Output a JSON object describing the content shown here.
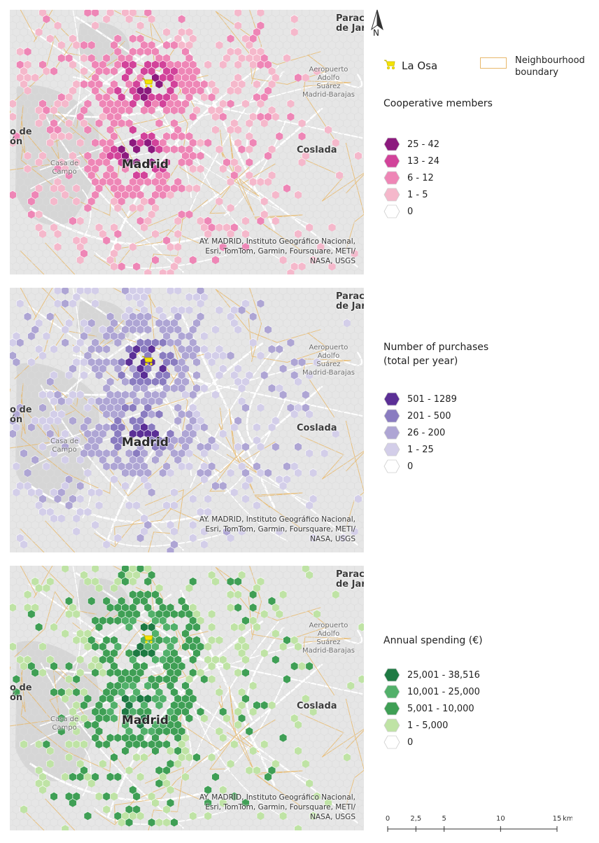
{
  "colors": {
    "boundary": "#e8b86b",
    "map_bg": "#e6e6e6",
    "park": "#d6d6d6",
    "road": "#ffffff",
    "marker": "#f5e400"
  },
  "north_label": "N",
  "general_legend": {
    "store_label": "La Osa",
    "store_icon": "shopping-cart-icon",
    "boundary_label_line1": "Neighbourhood",
    "boundary_label_line2": "boundary"
  },
  "map_labels": {
    "madrid": "Madrid",
    "coslada": "Coslada",
    "paracuellos_l1": "Paracuel",
    "paracuellos_l2": "de Jara",
    "airport_l1": "Aeropuerto",
    "airport_l2": "Adolfo",
    "airport_l3": "Suárez",
    "airport_l4": "Madrid-Barajas",
    "casa_l1": "Casa de",
    "casa_l2": "Campo",
    "pozuelo_l1": "o de",
    "pozuelo_l2": "ón"
  },
  "attribution": {
    "line1": "AY. MADRID, Instituto Geográfico Nacional,",
    "line2": "Esri, TomTom, Garmin, Foursquare, METI/",
    "line3": "NASA, USGS"
  },
  "panels": [
    {
      "legend_title_line1": "Cooperative members",
      "legend_title_line2": "",
      "classes": [
        {
          "label": "25 - 42",
          "color": "#8c1a7e"
        },
        {
          "label": "13 - 24",
          "color": "#d2439a"
        },
        {
          "label": "6 - 12",
          "color": "#ee86b6"
        },
        {
          "label": "1 - 5",
          "color": "#f5b8cb"
        },
        {
          "label": "0",
          "color": "#ffffff"
        }
      ]
    },
    {
      "legend_title_line1": "Number of purchases",
      "legend_title_line2": "(total per year)",
      "classes": [
        {
          "label": "501 - 1289",
          "color": "#5b2f96"
        },
        {
          "label": "201 - 500",
          "color": "#8a7cc0"
        },
        {
          "label": "26 - 200",
          "color": "#aea5d4"
        },
        {
          "label": "1 - 25",
          "color": "#d3cee9"
        },
        {
          "label": "0",
          "color": "#ffffff"
        }
      ]
    },
    {
      "legend_title_line1": "Annual spending (€)",
      "legend_title_line2": "",
      "classes": [
        {
          "label": "25,001 - 38,516",
          "color": "#1e7a43"
        },
        {
          "label": "10,001 - 25,000",
          "color": "#52b06a"
        },
        {
          "label": "5,001 - 10,000",
          "color": "#3f9f55"
        },
        {
          "label": "1 - 5,000",
          "color": "#bfe3a5"
        },
        {
          "label": "0",
          "color": "#ffffff"
        }
      ]
    }
  ],
  "scale_bar": {
    "ticks": [
      "0",
      "2,5",
      "5",
      "10",
      "15"
    ],
    "tick_values": [
      0,
      2.5,
      5,
      10,
      15
    ],
    "unit": "km"
  }
}
